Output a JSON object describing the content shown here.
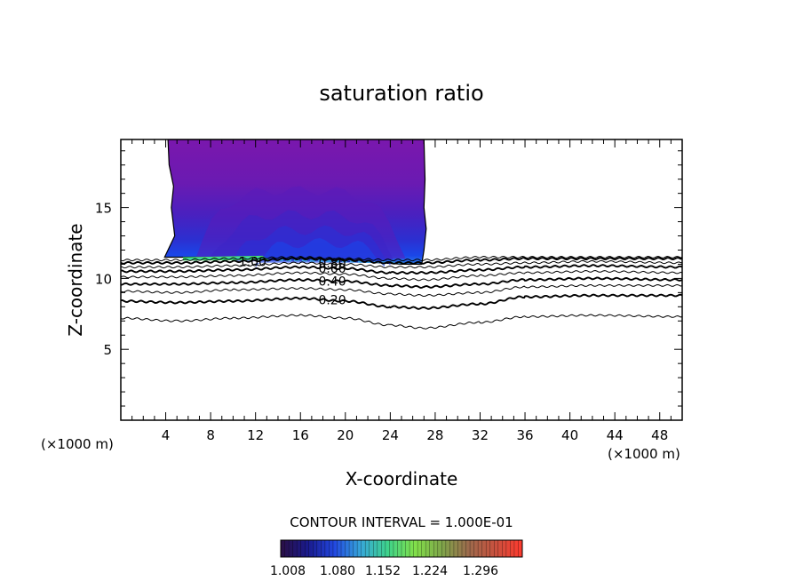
{
  "chart_data": {
    "type": "contour",
    "title": "saturation ratio",
    "xlabel": "X-coordinate",
    "ylabel": "Z-coordinate",
    "x_unit_label": "(×1000 m)",
    "y_unit_label": "(×1000 m)",
    "xlim": [
      0,
      50
    ],
    "ylim": [
      0,
      19.8
    ],
    "x_ticks": [
      4,
      8,
      12,
      16,
      20,
      24,
      28,
      32,
      36,
      40,
      44,
      48
    ],
    "y_ticks": [
      5,
      10,
      15
    ],
    "contour_interval_text": "CONTOUR INTERVAL = 1.000E-01",
    "contour_labels": [
      {
        "text": "1.00",
        "x": 10.5,
        "z": 11.2
      },
      {
        "text": "0.80",
        "x": 17.6,
        "z": 11.1
      },
      {
        "text": "0.60",
        "x": 17.6,
        "z": 10.7
      },
      {
        "text": "0.40",
        "x": 17.6,
        "z": 9.8
      },
      {
        "text": "0.20",
        "x": 17.6,
        "z": 8.5
      }
    ],
    "contour_lines": [
      {
        "level": 0.1,
        "points": [
          [
            0,
            7.2
          ],
          [
            5,
            7.0
          ],
          [
            10,
            7.2
          ],
          [
            16,
            7.4
          ],
          [
            20,
            7.2
          ],
          [
            24,
            6.7
          ],
          [
            27,
            6.5
          ],
          [
            32,
            6.9
          ],
          [
            36,
            7.3
          ],
          [
            42,
            7.4
          ],
          [
            50,
            7.3
          ]
        ]
      },
      {
        "level": 0.2,
        "points": [
          [
            0,
            8.4
          ],
          [
            5,
            8.3
          ],
          [
            10,
            8.4
          ],
          [
            16,
            8.6
          ],
          [
            20,
            8.4
          ],
          [
            24,
            8.0
          ],
          [
            27,
            7.9
          ],
          [
            32,
            8.2
          ],
          [
            36,
            8.7
          ],
          [
            42,
            8.8
          ],
          [
            50,
            8.8
          ]
        ]
      },
      {
        "level": 0.3,
        "points": [
          [
            0,
            9.1
          ],
          [
            5,
            9.0
          ],
          [
            10,
            9.2
          ],
          [
            16,
            9.3
          ],
          [
            20,
            9.2
          ],
          [
            24,
            8.9
          ],
          [
            27,
            8.8
          ],
          [
            32,
            9.0
          ],
          [
            36,
            9.4
          ],
          [
            42,
            9.5
          ],
          [
            50,
            9.5
          ]
        ]
      },
      {
        "level": 0.4,
        "points": [
          [
            0,
            9.6
          ],
          [
            5,
            9.6
          ],
          [
            10,
            9.7
          ],
          [
            16,
            9.9
          ],
          [
            20,
            9.8
          ],
          [
            24,
            9.5
          ],
          [
            27,
            9.4
          ],
          [
            32,
            9.6
          ],
          [
            36,
            9.9
          ],
          [
            42,
            10.0
          ],
          [
            50,
            9.9
          ]
        ]
      },
      {
        "level": 0.5,
        "points": [
          [
            0,
            10.1
          ],
          [
            5,
            10.1
          ],
          [
            10,
            10.2
          ],
          [
            16,
            10.4
          ],
          [
            20,
            10.3
          ],
          [
            24,
            10.0
          ],
          [
            27,
            9.9
          ],
          [
            32,
            10.2
          ],
          [
            36,
            10.4
          ],
          [
            42,
            10.5
          ],
          [
            50,
            10.4
          ]
        ]
      },
      {
        "level": 0.6,
        "points": [
          [
            0,
            10.5
          ],
          [
            5,
            10.5
          ],
          [
            10,
            10.6
          ],
          [
            16,
            10.8
          ],
          [
            20,
            10.7
          ],
          [
            24,
            10.4
          ],
          [
            27,
            10.4
          ],
          [
            32,
            10.6
          ],
          [
            36,
            10.8
          ],
          [
            42,
            10.9
          ],
          [
            50,
            10.8
          ]
        ]
      },
      {
        "level": 0.7,
        "points": [
          [
            0,
            10.8
          ],
          [
            5,
            10.8
          ],
          [
            10,
            10.9
          ],
          [
            16,
            11.1
          ],
          [
            20,
            11.0
          ],
          [
            24,
            10.8
          ],
          [
            27,
            10.8
          ],
          [
            32,
            11.0
          ],
          [
            36,
            11.1
          ],
          [
            42,
            11.2
          ],
          [
            50,
            11.1
          ]
        ]
      },
      {
        "level": 0.8,
        "points": [
          [
            0,
            11.1
          ],
          [
            5,
            11.1
          ],
          [
            10,
            11.2
          ],
          [
            16,
            11.4
          ],
          [
            20,
            11.3
          ],
          [
            24,
            11.1
          ],
          [
            27,
            11.1
          ],
          [
            32,
            11.3
          ],
          [
            36,
            11.4
          ],
          [
            42,
            11.4
          ],
          [
            50,
            11.4
          ]
        ]
      },
      {
        "level": 0.9,
        "points": [
          [
            0,
            11.3
          ],
          [
            5,
            11.3
          ],
          [
            10,
            11.4
          ],
          [
            16,
            11.5
          ],
          [
            20,
            11.4
          ],
          [
            24,
            11.3
          ],
          [
            27,
            11.3
          ],
          [
            32,
            11.5
          ],
          [
            36,
            11.5
          ],
          [
            42,
            11.5
          ],
          [
            50,
            11.5
          ]
        ]
      }
    ],
    "shaded_region": {
      "outline": [
        [
          4.2,
          19.8
        ],
        [
          4.3,
          18.0
        ],
        [
          4.7,
          16.5
        ],
        [
          4.5,
          15.0
        ],
        [
          4.8,
          13.0
        ],
        [
          3.9,
          11.5
        ],
        [
          5,
          11.5
        ],
        [
          10,
          11.5
        ],
        [
          14,
          11.3
        ],
        [
          17,
          11.3
        ],
        [
          20,
          11.2
        ],
        [
          23,
          11.1
        ],
        [
          25,
          11.0
        ],
        [
          26.8,
          11.0
        ],
        [
          27.0,
          12.0
        ],
        [
          27.2,
          13.5
        ],
        [
          27.0,
          15.0
        ],
        [
          27.1,
          17.0
        ],
        [
          27.0,
          19.8
        ]
      ]
    },
    "colorbar": {
      "tick_labels": [
        "1.008",
        "1.080",
        "1.152",
        "1.224",
        "1.296"
      ],
      "colors": [
        "#2a0f44",
        "#1a1a8c",
        "#2248e0",
        "#37a8d8",
        "#3fd38a",
        "#82e04a",
        "#7fa64a",
        "#9c6a4c",
        "#c9513e",
        "#ff3a2e"
      ]
    }
  }
}
